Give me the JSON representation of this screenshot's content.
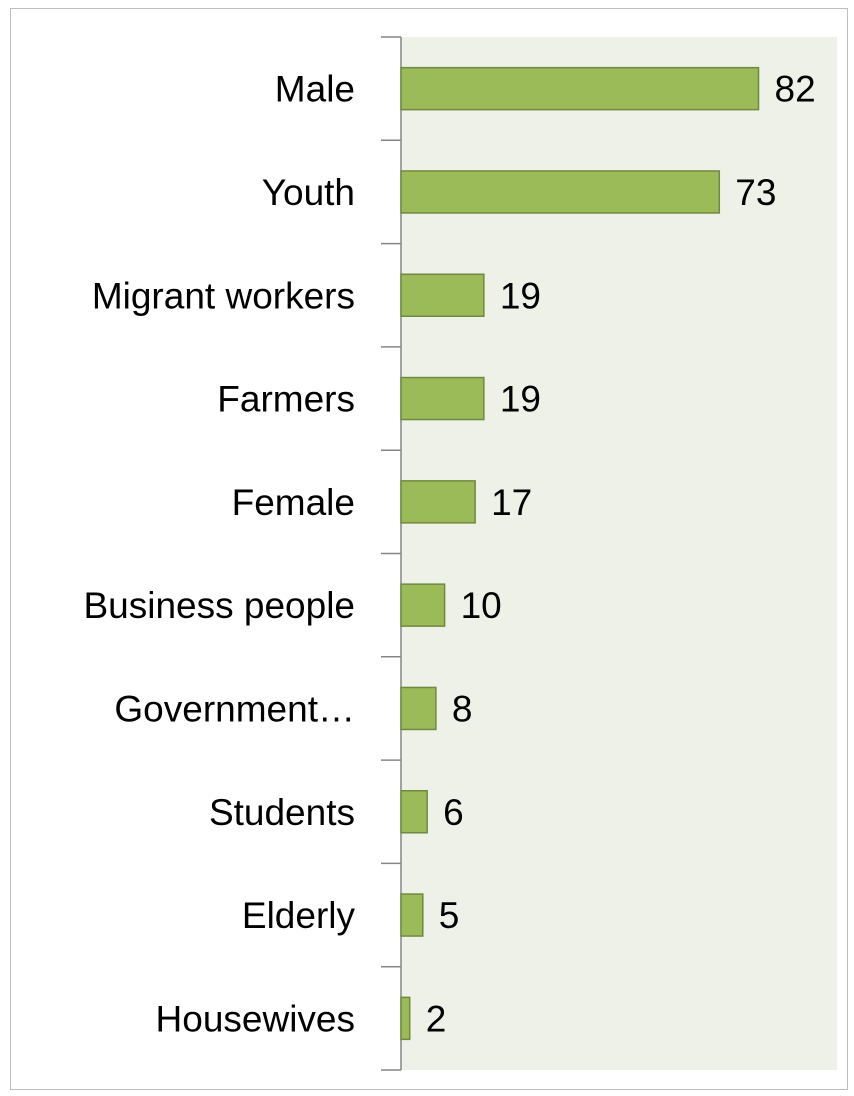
{
  "chart_data": {
    "type": "bar",
    "orientation": "horizontal",
    "categories": [
      "Male",
      "Youth",
      "Migrant workers",
      "Farmers",
      "Female",
      "Business people",
      "Government…",
      "Students",
      "Elderly",
      "Housewives"
    ],
    "values": [
      82,
      73,
      19,
      19,
      17,
      10,
      8,
      6,
      5,
      2
    ],
    "title": "",
    "xlabel": "",
    "ylabel": "",
    "xlim": [
      0,
      100
    ],
    "grid": false,
    "legend": "none",
    "data_labels": true,
    "colors": {
      "bar_fill": "#9bbb59",
      "bar_stroke": "#71893f",
      "plot_background": "#eef1e8",
      "axis": "#868686"
    }
  }
}
